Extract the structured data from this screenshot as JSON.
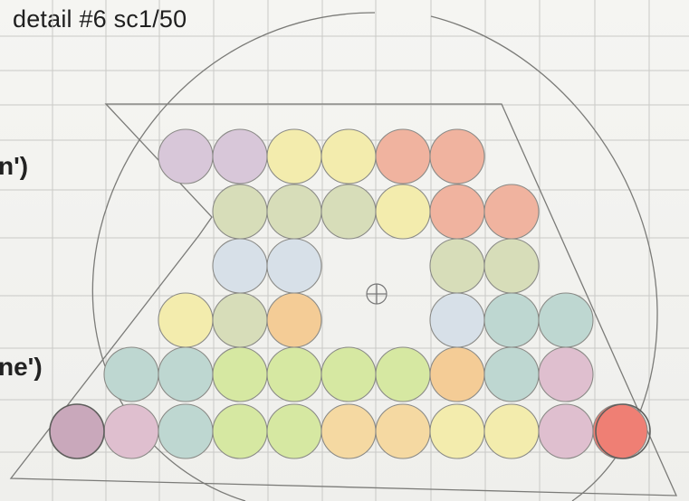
{
  "title": "detail #6 sc1/50",
  "side_labels": {
    "upper": "n')",
    "lower": "ne')"
  },
  "swatch_colors": {
    "mauve": "#d9c6d4",
    "lavender": "#d8c7d9",
    "pale_yellow": "#f3ecad",
    "salmon": "#f0b39f",
    "sage": "#d7ddb9",
    "powder_blue": "#d7e0e8",
    "teal_grey": "#bed7d1",
    "peach": "#f4cc96",
    "lime": "#d6e8a2",
    "orange_yellow": "#f5d9a2",
    "pink": "#dfbfcf",
    "plum": "#c9a8bb",
    "red": "#ef7f74"
  },
  "circle_rows": [
    [
      "lavender",
      "lavender",
      "pale_yellow",
      "pale_yellow",
      "salmon",
      "salmon"
    ],
    [
      "sage",
      "sage",
      "sage",
      "pale_yellow",
      "salmon",
      "salmon"
    ],
    [
      "powder_blue",
      "powder_blue",
      "sage",
      "sage"
    ],
    [
      "pale_yellow",
      "sage",
      "peach",
      "powder_blue",
      "teal_grey",
      "teal_grey"
    ],
    [
      "teal_grey",
      "teal_grey",
      "lime",
      "lime",
      "lime",
      "lime",
      "peach",
      "teal_grey",
      "pink"
    ],
    [
      "plum",
      "pink",
      "teal_grey",
      "lime",
      "lime",
      "orange_yellow",
      "orange_yellow",
      "pale_yellow",
      "pale_yellow",
      "pink",
      "red"
    ]
  ],
  "center_marker": "center-mark"
}
